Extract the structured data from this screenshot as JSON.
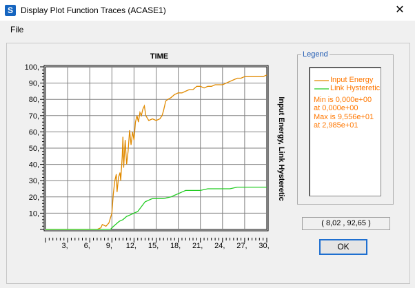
{
  "window": {
    "title": "Display Plot Function Traces  (ACASE1)",
    "app_icon": "S",
    "close_glyph": "✕"
  },
  "menu": {
    "file": "File"
  },
  "colors": {
    "input_energy": "#e08a00",
    "link_hysteretic": "#22cc22",
    "legend_text": "#ff7700",
    "legend_caption": "#1a56b0"
  },
  "chart_data": {
    "type": "line",
    "title": "TIME",
    "xlabel": "",
    "ylabel": "Input Energy, Link Hysteretic",
    "xlim": [
      0,
      30
    ],
    "ylim": [
      0,
      100
    ],
    "x_ticks": [
      "3,",
      "6,",
      "9,",
      "12,",
      "15,",
      "18,",
      "21,",
      "24,",
      "27,",
      "30,"
    ],
    "y_ticks": [
      "10,",
      "20,",
      "30,",
      "40,",
      "50,",
      "60,",
      "70,",
      "80,",
      "90,",
      "100,"
    ],
    "grid": true,
    "series": [
      {
        "name": "Input Energy",
        "color": "#e08a00",
        "points": [
          [
            0,
            0
          ],
          [
            7,
            0
          ],
          [
            7.5,
            1
          ],
          [
            7.7,
            3
          ],
          [
            8.2,
            2
          ],
          [
            8.6,
            4
          ],
          [
            9.0,
            10
          ],
          [
            9.2,
            22
          ],
          [
            9.4,
            30
          ],
          [
            9.6,
            34
          ],
          [
            9.7,
            23
          ],
          [
            9.9,
            32
          ],
          [
            10.1,
            35
          ],
          [
            10.2,
            30
          ],
          [
            10.4,
            45
          ],
          [
            10.5,
            57
          ],
          [
            10.6,
            38
          ],
          [
            10.8,
            55
          ],
          [
            11.0,
            40
          ],
          [
            11.2,
            48
          ],
          [
            11.4,
            61
          ],
          [
            11.6,
            52
          ],
          [
            11.8,
            60
          ],
          [
            12.0,
            55
          ],
          [
            12.2,
            66
          ],
          [
            12.4,
            70
          ],
          [
            12.6,
            66
          ],
          [
            12.8,
            72
          ],
          [
            13.0,
            70
          ],
          [
            13.2,
            74
          ],
          [
            13.4,
            76
          ],
          [
            13.6,
            70
          ],
          [
            14.0,
            67
          ],
          [
            14.5,
            68
          ],
          [
            15.0,
            67
          ],
          [
            15.5,
            68
          ],
          [
            15.8,
            70
          ],
          [
            16.0,
            73
          ],
          [
            16.3,
            79
          ],
          [
            16.6,
            80
          ],
          [
            17.0,
            81
          ],
          [
            17.5,
            83
          ],
          [
            18.0,
            84
          ],
          [
            18.5,
            84
          ],
          [
            19.0,
            85
          ],
          [
            19.5,
            86
          ],
          [
            20.0,
            86
          ],
          [
            20.5,
            88
          ],
          [
            21.0,
            88
          ],
          [
            21.5,
            87
          ],
          [
            22.0,
            88
          ],
          [
            22.5,
            88
          ],
          [
            23.0,
            89
          ],
          [
            24.0,
            89
          ],
          [
            24.5,
            90
          ],
          [
            25.0,
            91
          ],
          [
            25.5,
            92
          ],
          [
            26.0,
            93
          ],
          [
            26.5,
            93
          ],
          [
            27.0,
            94
          ],
          [
            28.0,
            94
          ],
          [
            29.0,
            94
          ],
          [
            29.5,
            94
          ],
          [
            30.0,
            95
          ]
        ]
      },
      {
        "name": "Link Hysteretic",
        "color": "#22cc22",
        "points": [
          [
            0,
            0
          ],
          [
            8.8,
            0
          ],
          [
            9.0,
            1
          ],
          [
            9.5,
            3
          ],
          [
            10.0,
            5
          ],
          [
            10.5,
            6
          ],
          [
            11.0,
            8
          ],
          [
            11.5,
            9
          ],
          [
            12.0,
            10
          ],
          [
            12.5,
            11
          ],
          [
            13.0,
            14
          ],
          [
            13.5,
            17
          ],
          [
            14.0,
            18
          ],
          [
            14.5,
            19
          ],
          [
            15.0,
            19
          ],
          [
            16.0,
            19
          ],
          [
            17.0,
            20
          ],
          [
            17.5,
            21
          ],
          [
            18.0,
            22
          ],
          [
            18.5,
            23
          ],
          [
            19.0,
            24
          ],
          [
            20.0,
            24
          ],
          [
            21.0,
            24
          ],
          [
            22.0,
            25
          ],
          [
            23.0,
            25
          ],
          [
            25.0,
            25
          ],
          [
            26.0,
            26
          ],
          [
            30.0,
            26
          ]
        ]
      }
    ]
  },
  "legend": {
    "caption": "Legend",
    "entries": [
      "Input Energy",
      "Link Hysteretic"
    ],
    "min_line": "Min is 0,000e+00",
    "min_at": "at 0,000e+00",
    "max_line": "Max is 9,556e+01",
    "max_at": "at 2,985e+01"
  },
  "coord_readout": "( 8,02 , 92,65 )",
  "buttons": {
    "ok": "OK"
  }
}
